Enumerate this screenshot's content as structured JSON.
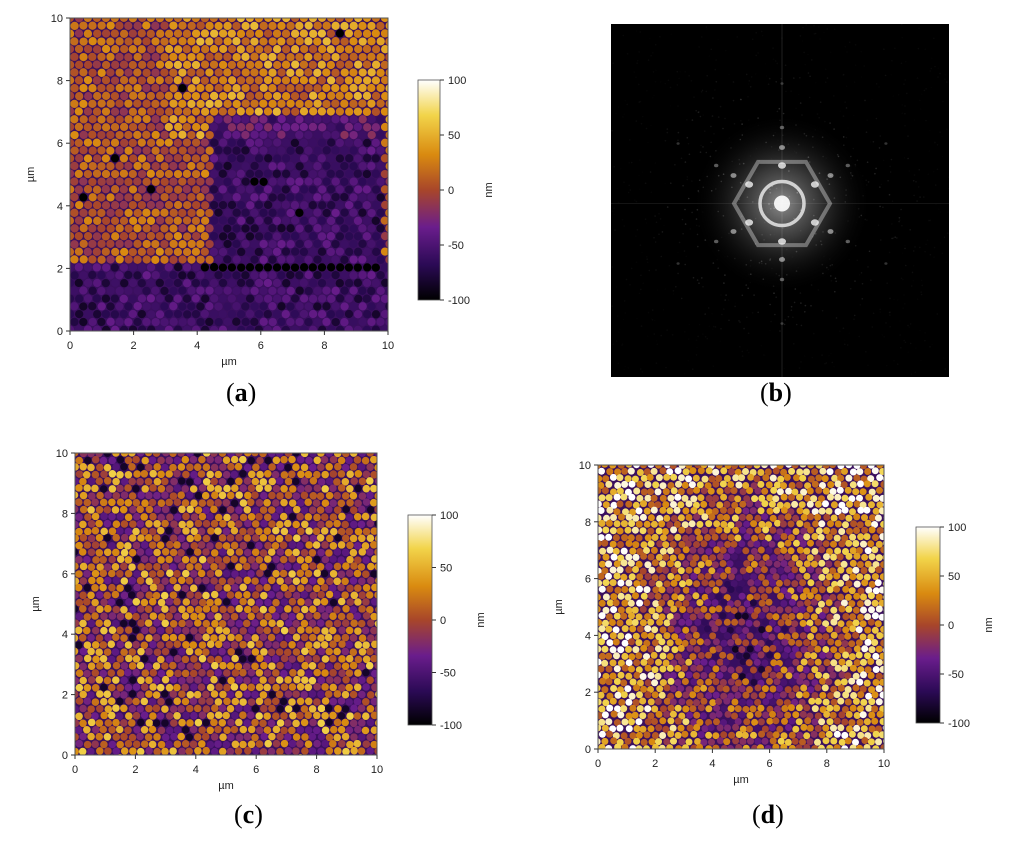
{
  "figure": {
    "colors": {
      "cmap_stops": [
        "#000000",
        "#2b0a55",
        "#6a1d8c",
        "#a8462a",
        "#d98a10",
        "#f2d44a",
        "#ffffff"
      ],
      "fft_background": "#000000",
      "axis": "#333333"
    },
    "panels": [
      {
        "id": "a",
        "caption": {
          "open": "(",
          "letter": "a",
          "close": ")"
        },
        "type": "afm-height-map",
        "xlabel": "µm",
        "ylabel": "µm",
        "xlim": [
          0,
          10
        ],
        "ylim": [
          0,
          10
        ],
        "xticks": [
          "0",
          "2",
          "4",
          "6",
          "8",
          "10"
        ],
        "yticks": [
          "0",
          "2",
          "4",
          "6",
          "8",
          "10"
        ],
        "colorbar": {
          "label": "nm",
          "range": [
            -100,
            100
          ],
          "ticks": [
            "100",
            "50",
            "0",
            "-50",
            "-100"
          ]
        }
      },
      {
        "id": "b",
        "caption": {
          "open": "(",
          "letter": "b",
          "close": ")"
        },
        "type": "fft-image"
      },
      {
        "id": "c",
        "caption": {
          "open": "(",
          "letter": "c",
          "close": ")"
        },
        "type": "afm-height-map",
        "xlabel": "µm",
        "ylabel": "µm",
        "xlim": [
          0,
          10
        ],
        "ylim": [
          0,
          10
        ],
        "xticks": [
          "0",
          "2",
          "4",
          "6",
          "8",
          "10"
        ],
        "yticks": [
          "0",
          "2",
          "4",
          "6",
          "8",
          "10"
        ],
        "colorbar": {
          "label": "nm",
          "range": [
            -100,
            100
          ],
          "ticks": [
            "100",
            "50",
            "0",
            "-50",
            "-100"
          ]
        }
      },
      {
        "id": "d",
        "caption": {
          "open": "(",
          "letter": "d",
          "close": ")"
        },
        "type": "afm-height-map",
        "xlabel": "µm",
        "ylabel": "µm",
        "xlim": [
          0,
          10
        ],
        "ylim": [
          0,
          10
        ],
        "xticks": [
          "0",
          "2",
          "4",
          "6",
          "8",
          "10"
        ],
        "yticks": [
          "0",
          "2",
          "4",
          "6",
          "8",
          "10"
        ],
        "colorbar": {
          "label": "nm",
          "range": [
            -100,
            100
          ],
          "ticks": [
            "100",
            "50",
            "0",
            "-50",
            "-100"
          ]
        }
      }
    ]
  },
  "chart_data": [
    {
      "type": "heatmap",
      "panel": "a",
      "xlabel": "µm",
      "ylabel": "µm",
      "xlim": [
        0,
        10
      ],
      "ylim": [
        0,
        10
      ],
      "colorbar_label": "nm",
      "zlim": [
        -100,
        100
      ]
    },
    {
      "type": "heatmap",
      "panel": "b"
    },
    {
      "type": "heatmap",
      "panel": "c",
      "xlabel": "µm",
      "ylabel": "µm",
      "xlim": [
        0,
        10
      ],
      "ylim": [
        0,
        10
      ],
      "colorbar_label": "nm",
      "zlim": [
        -100,
        100
      ]
    },
    {
      "type": "heatmap",
      "panel": "d",
      "xlabel": "µm",
      "ylabel": "µm",
      "xlim": [
        0,
        10
      ],
      "ylim": [
        0,
        10
      ],
      "colorbar_label": "nm",
      "zlim": [
        -100,
        100
      ]
    }
  ]
}
